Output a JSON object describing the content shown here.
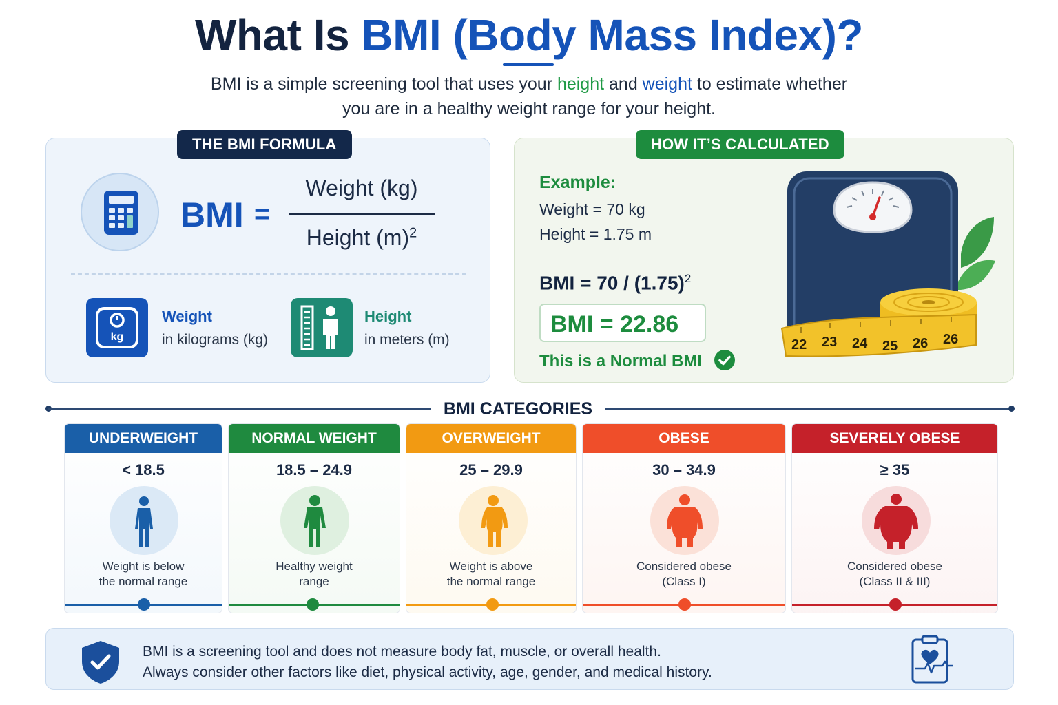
{
  "header": {
    "title_prefix": "What Is ",
    "title_accent": "BMI (Body Mass Index)?",
    "intro_part1": "BMI is a simple screening tool that uses your ",
    "intro_height": "height",
    "intro_and": " and ",
    "intro_weight": "weight",
    "intro_part2": " to estimate whether",
    "intro_line2": "you are in a healthy weight range for your height."
  },
  "formula_panel": {
    "tag": "THE BMI FORMULA",
    "lhs": "BMI",
    "equals": "=",
    "numerator": "Weight (kg)",
    "denominator": "Height (m)",
    "denominator_exp": "2",
    "weight_title": "Weight",
    "weight_sub": "in kilograms (kg)",
    "weight_icon_label": "kg",
    "height_title": "Height",
    "height_sub": "in meters (m)"
  },
  "calc_panel": {
    "tag": "HOW IT’S CALCULATED",
    "example_label": "Example:",
    "weight_line": "Weight = 70 kg",
    "height_line": "Height = 1.75 m",
    "formula_line": "BMI = 70 / (1.75)",
    "formula_exp": "2",
    "result": "BMI = 22.86",
    "verdict": "This is a Normal BMI",
    "tape_numbers": [
      "22",
      "23",
      "24",
      "25",
      "26",
      "26"
    ]
  },
  "categories": {
    "heading": "BMI CATEGORIES",
    "items": [
      {
        "label": "UNDERWEIGHT",
        "range": "< 18.5",
        "desc1": "Weight is below",
        "desc2": "the normal range",
        "color": "#1a5fa8",
        "tint": "#dbe9f6"
      },
      {
        "label": "NORMAL WEIGHT",
        "range": "18.5 – 24.9",
        "desc1": "Healthy weight",
        "desc2": "range",
        "color": "#1f8a3f",
        "tint": "#dff0e0"
      },
      {
        "label": "OVERWEIGHT",
        "range": "25 – 29.9",
        "desc1": "Weight is above",
        "desc2": "the normal range",
        "color": "#f29a12",
        "tint": "#fdefd4"
      },
      {
        "label": "OBESE",
        "range": "30 – 34.9",
        "desc1": "Considered obese",
        "desc2": "(Class I)",
        "color": "#ef4e2a",
        "tint": "#fbe1d8"
      },
      {
        "label": "SEVERELY OBESE",
        "range": "≥ 35",
        "desc1": "Considered obese",
        "desc2": "(Class II & III)",
        "color": "#c5212a",
        "tint": "#f7dcdc"
      }
    ]
  },
  "footer": {
    "line1": "BMI is a screening tool and does not measure body fat, muscle, or overall health.",
    "line2": "Always consider other factors like diet, physical activity, age, gender, and medical history."
  },
  "icons": {
    "calculator": "calculator-icon",
    "weight_scale": "weight-scale-icon",
    "height_ruler": "height-ruler-icon",
    "bathroom_scale": "bathroom-scale-icon",
    "measuring_tape": "measuring-tape-icon",
    "check": "check-icon",
    "shield": "shield-check-icon",
    "clipboard": "heart-clipboard-icon"
  }
}
